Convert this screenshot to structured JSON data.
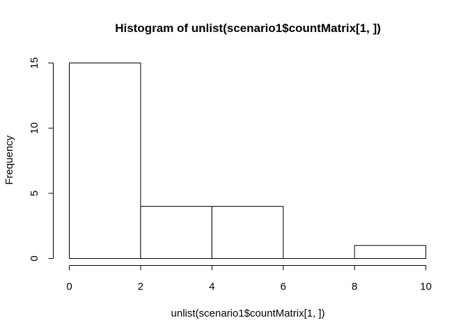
{
  "chart_data": {
    "type": "bar",
    "title": "Histogram of unlist(scenario1$countMatrix[1, ])",
    "xlabel": "unlist(scenario1$countMatrix[1, ])",
    "ylabel": "Frequency",
    "bins": [
      {
        "from": 0,
        "to": 2,
        "count": 15
      },
      {
        "from": 2,
        "to": 4,
        "count": 4
      },
      {
        "from": 4,
        "to": 6,
        "count": 4
      },
      {
        "from": 6,
        "to": 8,
        "count": 0
      },
      {
        "from": 8,
        "to": 10,
        "count": 1
      }
    ],
    "xlim": [
      0,
      10
    ],
    "ylim": [
      0,
      15
    ],
    "x_ticks": [
      "0",
      "2",
      "4",
      "6",
      "8",
      "10"
    ],
    "y_ticks": [
      "0",
      "5",
      "10",
      "15"
    ],
    "grid": false,
    "bar_fill": "#ffffff",
    "bar_stroke": "#000000"
  }
}
